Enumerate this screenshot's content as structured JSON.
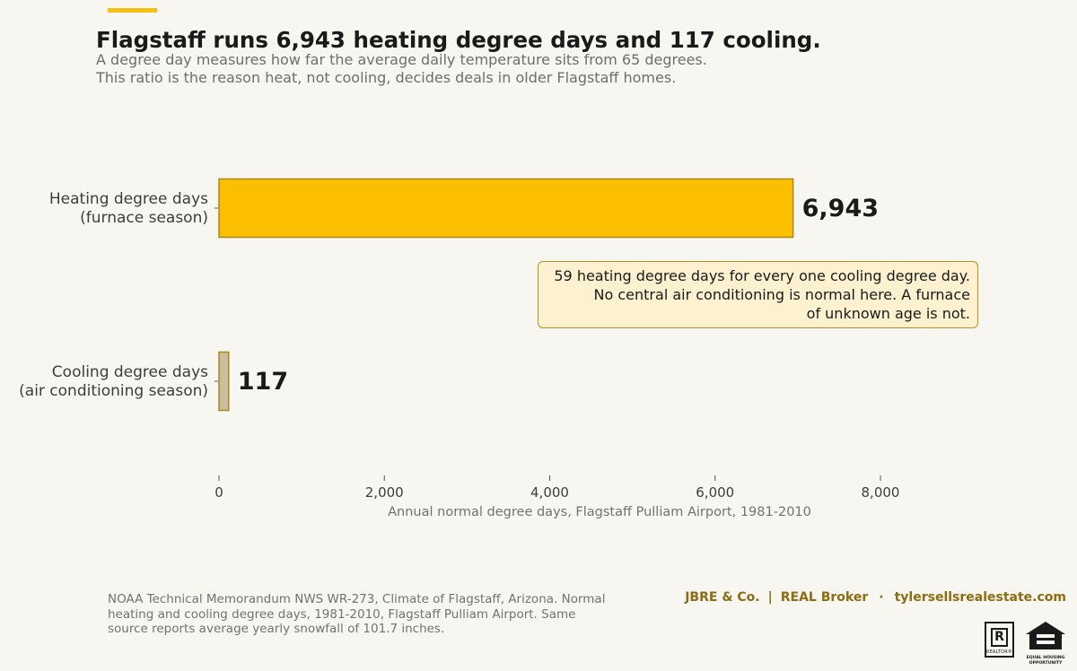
{
  "chart_data": {
    "type": "bar",
    "orientation": "horizontal",
    "title": "Flagstaff runs 6,943 heating degree days and 117 cooling.",
    "subtitle": [
      "A degree day measures how far the average daily temperature sits from 65 degrees.",
      "This ratio is the reason heat, not cooling, decides deals in older Flagstaff homes."
    ],
    "categories": [
      [
        "Heating degree days",
        "(furnace season)"
      ],
      [
        "Cooling degree days",
        "(air conditioning season)"
      ]
    ],
    "values": [
      6943,
      117
    ],
    "value_labels": [
      "6,943",
      "117"
    ],
    "bar_colors": [
      "#fcbf00",
      "#cbbd9f"
    ],
    "bar_edge_color": "#a88a1b",
    "xlabel": "Annual normal degree days, Flagstaff Pulliam Airport, 1981-2010",
    "ylabel": "",
    "xlim": [
      0,
      9000
    ],
    "xticks": [
      0,
      2000,
      4000,
      6000,
      8000
    ],
    "xtick_labels": [
      "0",
      "2,000",
      "4,000",
      "6,000",
      "8,000"
    ],
    "grid": false,
    "annotation": [
      "59 heating degree days for every one cooling degree day.",
      "No central air conditioning is normal here. A furnace",
      "of unknown age is not."
    ]
  },
  "source_note": [
    "NOAA Technical Memorandum NWS WR-273, Climate of Flagstaff, Arizona. Normal",
    "heating and cooling degree days, 1981-2010, Flagstaff Pulliam Airport. Same",
    "source reports average yearly snowfall of 101.7 inches."
  ],
  "branding": {
    "company": "JBRE & Co.",
    "separator": "|",
    "broker": "REAL Broker",
    "dot": "·",
    "website": "tylersellsrealestate.com",
    "brand_color": "#8c6d12"
  },
  "badges": {
    "realtor_letter": "R",
    "realtor_text": "REALTOR®",
    "eho_text": [
      "EQUAL HOUSING",
      "OPPORTUNITY"
    ]
  },
  "colors": {
    "accent": "#f5bf14",
    "background": "#f7f6f0",
    "callout_fill": "#fdf1cf",
    "callout_border": "#b39225"
  }
}
